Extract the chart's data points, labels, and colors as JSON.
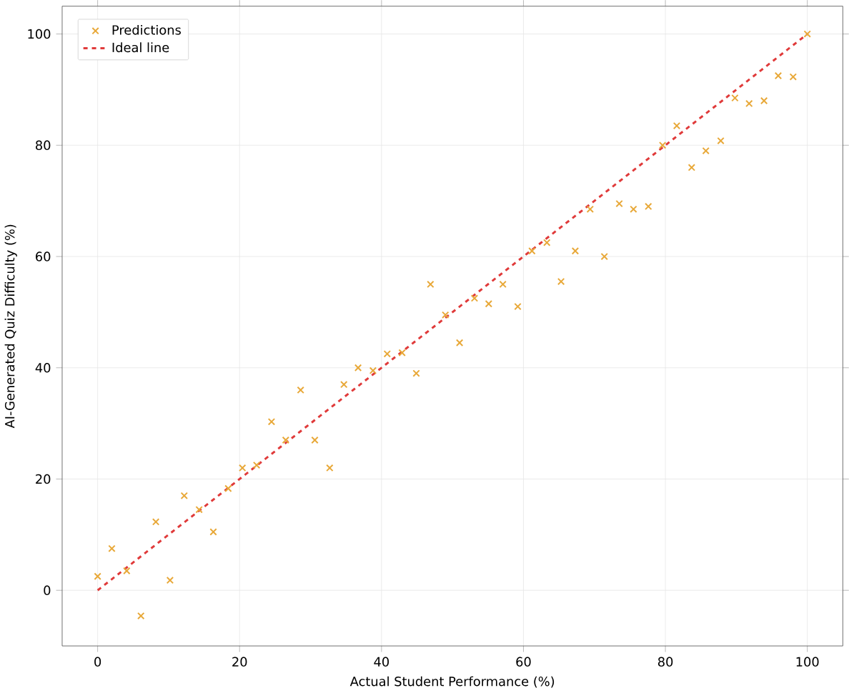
{
  "chart_data": {
    "type": "scatter",
    "xlabel": "Actual Student Performance (%)",
    "ylabel": "AI-Generated Quiz Difficulty (%)",
    "xlim": [
      -5,
      105
    ],
    "ylim": [
      -10,
      105
    ],
    "xticks": [
      0,
      20,
      40,
      60,
      80,
      100
    ],
    "yticks": [
      0,
      20,
      40,
      60,
      80,
      100
    ],
    "grid": true,
    "legend": "top left",
    "series": [
      {
        "name": "Predictions",
        "marker": "cross",
        "color": "#e8a838",
        "x": [
          0,
          2.0,
          4.1,
          6.1,
          8.2,
          10.2,
          12.2,
          14.3,
          16.3,
          18.4,
          20.4,
          22.4,
          24.5,
          26.5,
          28.6,
          30.6,
          32.7,
          34.7,
          36.7,
          38.8,
          40.8,
          42.9,
          44.9,
          46.9,
          49.0,
          51.0,
          53.1,
          55.1,
          57.1,
          59.2,
          61.2,
          63.3,
          65.3,
          67.3,
          69.4,
          71.4,
          73.5,
          75.5,
          77.6,
          79.6,
          81.6,
          83.7,
          85.7,
          87.8,
          89.8,
          91.8,
          93.9,
          95.9,
          98.0,
          100
        ],
        "values": [
          2.5,
          7.5,
          3.5,
          -4.6,
          12.3,
          1.8,
          17,
          14.5,
          10.5,
          18.3,
          22,
          22.5,
          30.3,
          27,
          36,
          27,
          22,
          37,
          40,
          39.5,
          42.5,
          42.7,
          39,
          55,
          49.5,
          44.5,
          52.5,
          51.5,
          55,
          51,
          61,
          62.5,
          55.5,
          61,
          68.5,
          60,
          69.5,
          68.5,
          69,
          80,
          83.5,
          76,
          79,
          80.8,
          88.5,
          87.5,
          88,
          92.5,
          92.3,
          100
        ]
      },
      {
        "name": "Ideal line",
        "type": "line",
        "line_style": "dashed",
        "color": "#e03a3a",
        "x": [
          0,
          100
        ],
        "values": [
          0,
          100
        ]
      }
    ]
  }
}
